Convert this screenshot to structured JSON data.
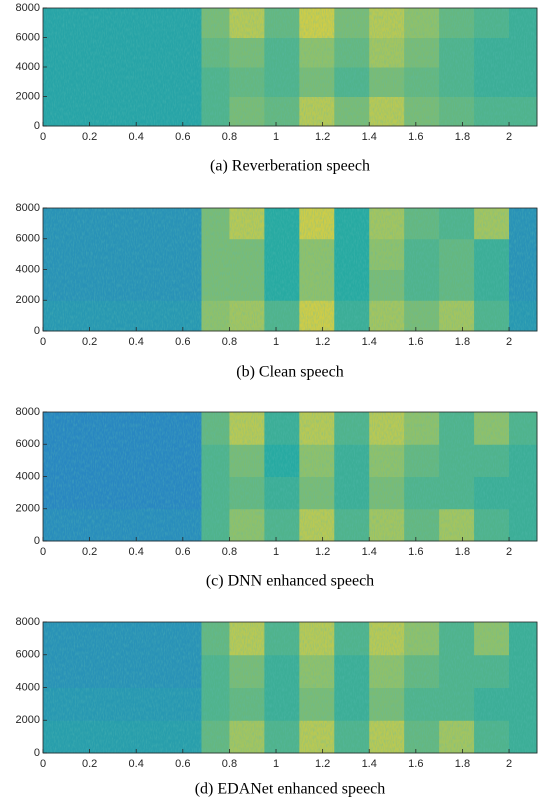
{
  "chart_data": [
    {
      "type": "heatmap",
      "title": "(a) Reverberation speech",
      "xbins": [
        0,
        0.68,
        0.8,
        0.95,
        1.1,
        1.25,
        1.4,
        1.55,
        1.7,
        1.85,
        2.0,
        2.12
      ],
      "ybins": [
        0,
        2000,
        4000,
        6000,
        8000
      ],
      "z": [
        [
          0.45,
          0.6,
          0.7,
          0.65,
          0.85,
          0.7,
          0.85,
          0.7,
          0.65,
          0.6,
          0.6
        ],
        [
          0.45,
          0.6,
          0.65,
          0.6,
          0.7,
          0.6,
          0.7,
          0.65,
          0.6,
          0.55,
          0.55
        ],
        [
          0.45,
          0.65,
          0.7,
          0.6,
          0.75,
          0.65,
          0.8,
          0.7,
          0.6,
          0.55,
          0.55
        ],
        [
          0.45,
          0.7,
          0.85,
          0.65,
          0.9,
          0.7,
          0.85,
          0.75,
          0.65,
          0.6,
          0.55
        ]
      ],
      "zlim": [
        0,
        1
      ],
      "colors": [
        "#2b6fd6",
        "#27aaa2",
        "#f6d532"
      ],
      "xlim": [
        0,
        2.12
      ],
      "ylim": [
        0,
        8000
      ],
      "xticks": [
        0,
        0.2,
        0.4,
        0.6,
        0.8,
        1,
        1.2,
        1.4,
        1.6,
        1.8,
        2
      ],
      "yticks": [
        0,
        2000,
        4000,
        6000,
        8000
      ]
    },
    {
      "type": "heatmap",
      "title": "(b) Clean speech",
      "xbins": [
        0,
        0.68,
        0.8,
        0.95,
        1.1,
        1.25,
        1.4,
        1.55,
        1.7,
        1.85,
        2.0,
        2.12
      ],
      "ybins": [
        0,
        2000,
        4000,
        6000,
        8000
      ],
      "z": [
        [
          0.35,
          0.75,
          0.8,
          0.6,
          0.9,
          0.55,
          0.8,
          0.7,
          0.8,
          0.6,
          0.35
        ],
        [
          0.3,
          0.7,
          0.7,
          0.5,
          0.75,
          0.5,
          0.7,
          0.6,
          0.65,
          0.55,
          0.3
        ],
        [
          0.3,
          0.7,
          0.7,
          0.5,
          0.75,
          0.5,
          0.75,
          0.6,
          0.65,
          0.55,
          0.3
        ],
        [
          0.3,
          0.7,
          0.85,
          0.5,
          0.9,
          0.5,
          0.8,
          0.65,
          0.6,
          0.8,
          0.3
        ]
      ],
      "zlim": [
        0,
        1
      ],
      "colors": [
        "#2b6fd6",
        "#27aaa2",
        "#f6d532"
      ],
      "xlim": [
        0,
        2.12
      ],
      "ylim": [
        0,
        8000
      ],
      "xticks": [
        0,
        0.2,
        0.4,
        0.6,
        0.8,
        1,
        1.2,
        1.4,
        1.6,
        1.8,
        2
      ],
      "yticks": [
        0,
        2000,
        4000,
        6000,
        8000
      ]
    },
    {
      "type": "heatmap",
      "title": "(c) DNN enhanced speech",
      "xbins": [
        0,
        0.68,
        0.8,
        0.95,
        1.1,
        1.25,
        1.4,
        1.55,
        1.7,
        1.85,
        2.0,
        2.12
      ],
      "ybins": [
        0,
        2000,
        4000,
        6000,
        8000
      ],
      "z": [
        [
          0.25,
          0.6,
          0.75,
          0.6,
          0.85,
          0.6,
          0.8,
          0.65,
          0.8,
          0.6,
          0.55
        ],
        [
          0.2,
          0.6,
          0.65,
          0.55,
          0.7,
          0.55,
          0.7,
          0.6,
          0.6,
          0.55,
          0.55
        ],
        [
          0.2,
          0.6,
          0.7,
          0.5,
          0.75,
          0.55,
          0.75,
          0.65,
          0.6,
          0.6,
          0.55
        ],
        [
          0.2,
          0.65,
          0.85,
          0.55,
          0.85,
          0.6,
          0.85,
          0.75,
          0.6,
          0.75,
          0.6
        ]
      ],
      "zlim": [
        0,
        1
      ],
      "colors": [
        "#2b6fd6",
        "#27aaa2",
        "#f6d532"
      ],
      "xlim": [
        0,
        2.12
      ],
      "ylim": [
        0,
        8000
      ],
      "xticks": [
        0,
        0.2,
        0.4,
        0.6,
        0.8,
        1,
        1.2,
        1.4,
        1.6,
        1.8,
        2
      ],
      "yticks": [
        0,
        2000,
        4000,
        6000,
        8000
      ]
    },
    {
      "type": "heatmap",
      "title": "(d) EDANet enhanced speech",
      "xbins": [
        0,
        0.68,
        0.8,
        0.95,
        1.1,
        1.25,
        1.4,
        1.55,
        1.7,
        1.85,
        2.0,
        2.12
      ],
      "ybins": [
        0,
        2000,
        4000,
        6000,
        8000
      ],
      "z": [
        [
          0.4,
          0.65,
          0.8,
          0.6,
          0.85,
          0.6,
          0.85,
          0.65,
          0.8,
          0.6,
          0.55
        ],
        [
          0.35,
          0.6,
          0.65,
          0.55,
          0.7,
          0.55,
          0.7,
          0.6,
          0.6,
          0.55,
          0.55
        ],
        [
          0.3,
          0.6,
          0.7,
          0.55,
          0.75,
          0.55,
          0.75,
          0.65,
          0.6,
          0.6,
          0.55
        ],
        [
          0.3,
          0.65,
          0.85,
          0.6,
          0.85,
          0.6,
          0.85,
          0.75,
          0.6,
          0.75,
          0.55
        ]
      ],
      "zlim": [
        0,
        1
      ],
      "colors": [
        "#2b6fd6",
        "#27aaa2",
        "#f6d532"
      ],
      "xlim": [
        0,
        2.12
      ],
      "ylim": [
        0,
        8000
      ],
      "xticks": [
        0,
        0.2,
        0.4,
        0.6,
        0.8,
        1,
        1.2,
        1.4,
        1.6,
        1.8,
        2
      ],
      "yticks": [
        0,
        2000,
        4000,
        6000,
        8000
      ]
    }
  ]
}
